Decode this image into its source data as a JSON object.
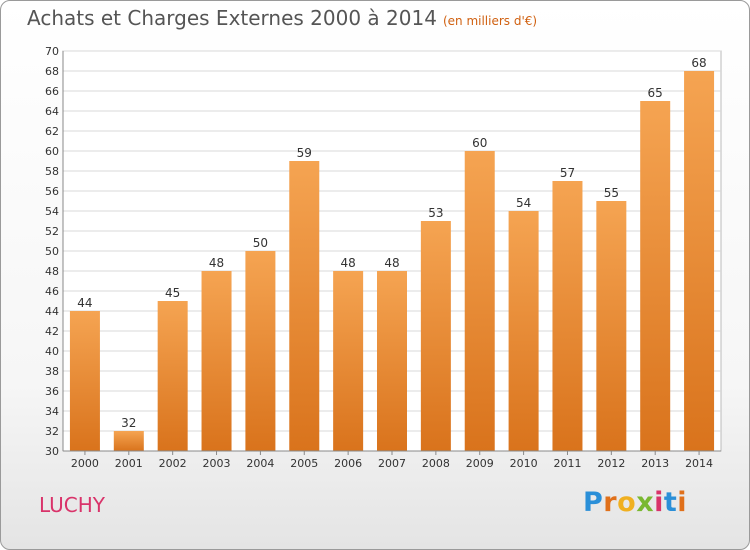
{
  "header": {
    "title": "Achats et Charges Externes 2000 à 2014",
    "subtitle": "(en milliers d'€)"
  },
  "footer": {
    "commune": "LUCHY",
    "logo_letters": [
      "P",
      "r",
      "o",
      "x",
      "i",
      "t",
      "i"
    ]
  },
  "colors": {
    "bar_top": "#f5a452",
    "bar_bottom": "#d9731c",
    "grid": "#d8d8d8",
    "axis_text": "#333333"
  },
  "chart_data": {
    "type": "bar",
    "title": "Achats et Charges Externes 2000 à 2014",
    "subtitle": "(en milliers d'€)",
    "categories": [
      "2000",
      "2001",
      "2002",
      "2003",
      "2004",
      "2005",
      "2006",
      "2007",
      "2008",
      "2009",
      "2010",
      "2011",
      "2012",
      "2013",
      "2014"
    ],
    "values": [
      44,
      32,
      45,
      48,
      50,
      59,
      48,
      48,
      53,
      60,
      54,
      57,
      55,
      65,
      68
    ],
    "ylim": [
      30,
      70
    ],
    "ytick_step": 2,
    "grid": true,
    "xlabel": "",
    "ylabel": ""
  }
}
